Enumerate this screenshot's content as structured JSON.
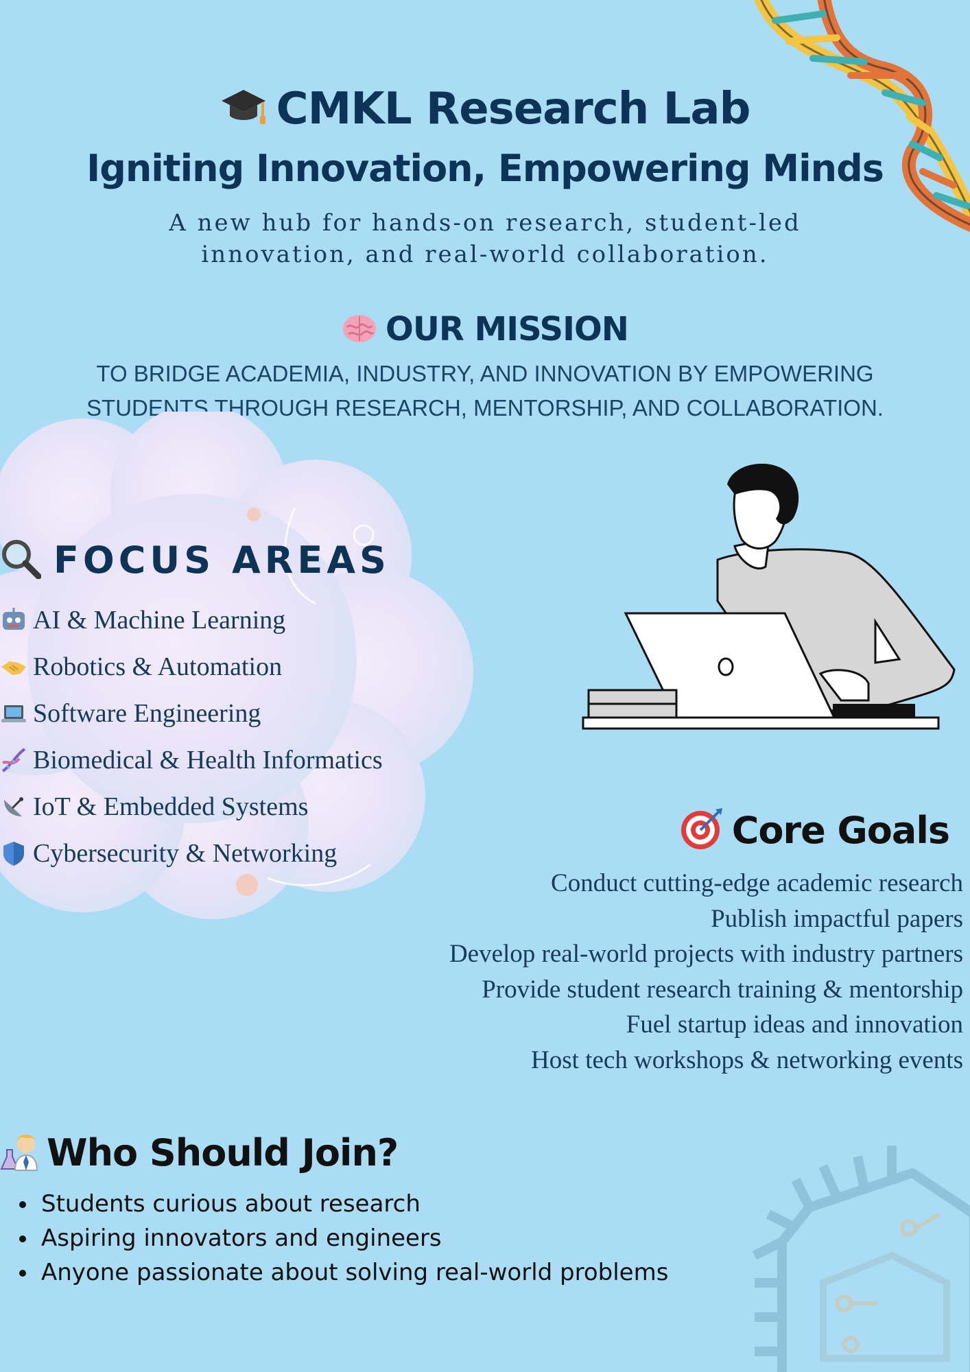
{
  "header": {
    "icon": "graduation-cap-icon",
    "title": "CMKL Research Lab",
    "subtitle": "Igniting Innovation, Empowering Minds",
    "tagline": "A new hub for hands-on research, student-led innovation, and real-world collaboration."
  },
  "mission": {
    "icon": "brain-icon",
    "title": "OUR MISSION",
    "text": "TO BRIDGE ACADEMIA, INDUSTRY, AND INNOVATION BY EMPOWERING STUDENTS THROUGH RESEARCH, MENTORSHIP, AND COLLABORATION."
  },
  "focus": {
    "icon": "magnifier-icon",
    "title": "FOCUS AREAS",
    "items": [
      {
        "icon": "robot-icon",
        "label": "AI & Machine Learning"
      },
      {
        "icon": "handshake-icon",
        "label": "Robotics & Automation"
      },
      {
        "icon": "laptop-icon",
        "label": "Software Engineering"
      },
      {
        "icon": "dna-icon",
        "label": "Biomedical & Health Informatics"
      },
      {
        "icon": "satellite-dish-icon",
        "label": "IoT & Embedded Systems"
      },
      {
        "icon": "shield-icon",
        "label": "Cybersecurity & Networking"
      }
    ]
  },
  "goals": {
    "icon": "target-icon",
    "title": "Core Goals",
    "items": [
      "Conduct cutting-edge academic research",
      "Publish impactful papers",
      "Develop real-world projects with industry partners",
      "Provide student research training & mentorship",
      "Fuel startup ideas and innovation",
      "Host tech workshops & networking events"
    ]
  },
  "join": {
    "icon": "scientist-icon",
    "title": "Who Should Join?",
    "items": [
      "Students curious about research",
      "Aspiring innovators and engineers",
      "Anyone passionate about solving real-world problems"
    ]
  },
  "colors": {
    "background": "#aadcf3",
    "heading": "#0d3357",
    "text": "#173a5a",
    "dark": "#111111"
  }
}
